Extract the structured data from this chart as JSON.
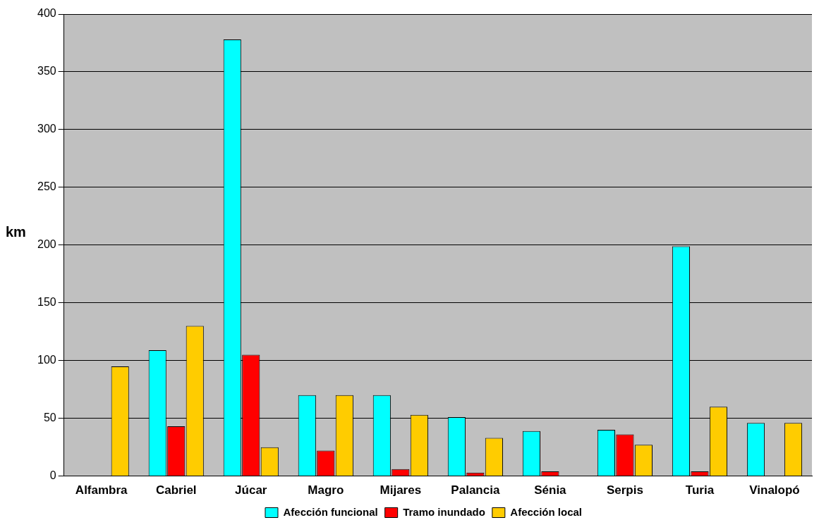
{
  "chart_data": {
    "type": "bar",
    "ylabel": "km",
    "categories": [
      "Alfambra",
      "Cabriel",
      "Júcar",
      "Magro",
      "Mijares",
      "Palancia",
      "Sénia",
      "Serpis",
      "Turia",
      "Vinalopó"
    ],
    "series": [
      {
        "name": "Afección funcional",
        "color": "#00ffff",
        "values": [
          null,
          109,
          378,
          70,
          70,
          51,
          39,
          40,
          199,
          46
        ]
      },
      {
        "name": "Tramo inundado",
        "color": "#ff0000",
        "values": [
          null,
          43,
          105,
          22,
          6,
          3,
          4,
          36,
          4,
          null
        ]
      },
      {
        "name": "Afección local",
        "color": "#ffcc00",
        "values": [
          95,
          130,
          25,
          70,
          53,
          33,
          null,
          27,
          60,
          46
        ]
      }
    ],
    "ylim": [
      0,
      400
    ],
    "yticks": [
      0,
      50,
      100,
      150,
      200,
      250,
      300,
      350,
      400
    ],
    "grid": "y",
    "legend": "bottom"
  }
}
